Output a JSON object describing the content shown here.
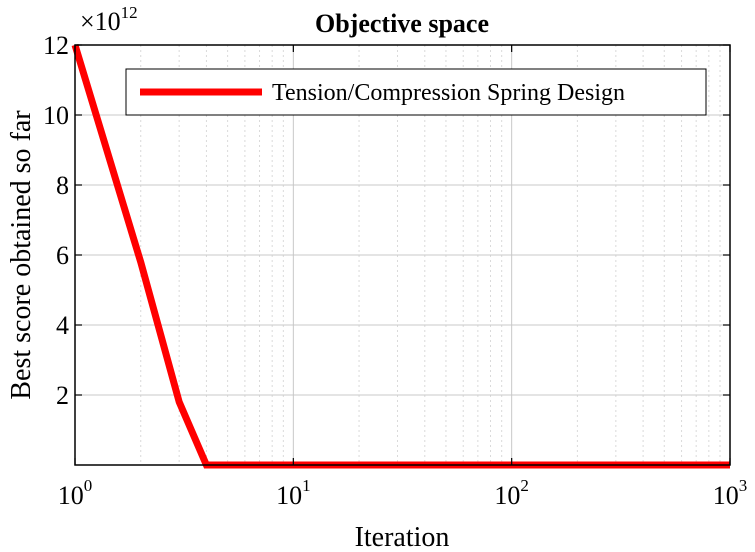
{
  "chart_data": {
    "type": "line",
    "title": "Objective space",
    "xlabel": "Iteration",
    "ylabel": "Best score obtained so far",
    "x_scale": "log",
    "xlim": [
      1,
      1000
    ],
    "ylim": [
      0,
      12
    ],
    "y_multiplier_label": "×10",
    "y_multiplier_exponent": "12",
    "x_ticks": [
      {
        "value": 1,
        "base": "10",
        "exp": "0"
      },
      {
        "value": 10,
        "base": "10",
        "exp": "1"
      },
      {
        "value": 100,
        "base": "10",
        "exp": "2"
      },
      {
        "value": 1000,
        "base": "10",
        "exp": "3"
      }
    ],
    "y_ticks": [
      {
        "value": 2,
        "label": "2"
      },
      {
        "value": 4,
        "label": "4"
      },
      {
        "value": 6,
        "label": "6"
      },
      {
        "value": 8,
        "label": "8"
      },
      {
        "value": 10,
        "label": "10"
      },
      {
        "value": 12,
        "label": "12"
      }
    ],
    "grid": true,
    "legend_position": "top-right",
    "series": [
      {
        "name": "Tension/Compression Spring Design",
        "color": "#ff0000",
        "x": [
          1,
          2,
          3,
          4,
          5,
          10,
          100,
          1000
        ],
        "y": [
          12,
          5.8,
          1.8,
          0,
          0,
          0,
          0,
          0
        ]
      }
    ]
  }
}
